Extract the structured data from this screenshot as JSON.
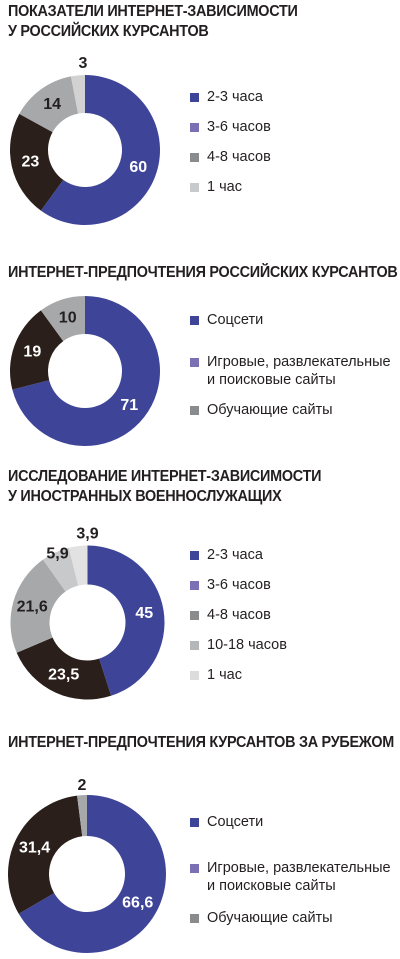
{
  "chart_data": [
    {
      "type": "pie",
      "title": "ПОКАЗАТЕЛИ ИНТЕРНЕТ-ЗАВИСИМОСТИ У РОССИЙСКИХ КУРСАНТОВ",
      "title_lines": [
        "ПОКАЗАТЕЛИ ИНТЕРНЕТ-ЗАВИСИМОСТИ",
        "У РОССИЙСКИХ КУРСАНТОВ"
      ],
      "categories": [
        "2-3 часа",
        "3-6 часов",
        "4-8 часов",
        "1 час"
      ],
      "slices": [
        {
          "label": "2-3 часа",
          "value": 60,
          "text": "60",
          "color": "#3e4598"
        },
        {
          "label": "4-8 часов",
          "value": 23,
          "text": "23",
          "color": "#2a1f1a"
        },
        {
          "label": "1 час",
          "value": 14,
          "text": "14",
          "color": "#a7a8aa"
        },
        {
          "label": "",
          "value": 3,
          "text": "3",
          "color": "#d2d2d3"
        }
      ],
      "legend": [
        {
          "label": "2-3 часа",
          "color": "#3e4598"
        },
        {
          "label": "3-6 часов",
          "color": "#7c70b5"
        },
        {
          "label": "4-8 часов",
          "color": "#8a8b8d"
        },
        {
          "label": "1 час",
          "color": "#c8c9ca"
        }
      ]
    },
    {
      "type": "pie",
      "title": "ИНТЕРНЕТ-ПРЕДПОЧТЕНИЯ РОССИЙСКИХ КУРСАНТОВ",
      "title_lines": [
        "ИНТЕРНЕТ-ПРЕДПОЧТЕНИЯ РОССИЙСКИХ КУРСАНТОВ"
      ],
      "categories": [
        "Соцсети",
        "Игровые, развлекательные и поисковые сайты",
        "Обучающие сайты"
      ],
      "slices": [
        {
          "label": "Соцсети",
          "value": 71,
          "text": "71",
          "color": "#3e4598"
        },
        {
          "label": "Игровые, развлекательные и поисковые сайты",
          "value": 19,
          "text": "19",
          "color": "#2a1f1a"
        },
        {
          "label": "Обучающие сайты",
          "value": 10,
          "text": "10",
          "color": "#a7a8aa"
        }
      ],
      "legend": [
        {
          "label": "Соцсети",
          "label_lines": [
            "Соцсети"
          ],
          "color": "#3e4598"
        },
        {
          "label": "Игровые, развлекательные и поисковые сайты",
          "label_lines": [
            "Игровые, развлекательные",
            "и поисковые сайты"
          ],
          "color": "#7c70b5"
        },
        {
          "label": "Обучающие сайты",
          "label_lines": [
            "Обучающие сайты"
          ],
          "color": "#8a8b8d"
        }
      ]
    },
    {
      "type": "pie",
      "title": "ИССЛЕДОВАНИЕ ИНТЕРНЕТ-ЗАВИСИМОСТИ У ИНОСТРАННЫХ ВОЕННОСЛУЖАЩИХ",
      "title_lines": [
        "ИССЛЕДОВАНИЕ ИНТЕРНЕТ-ЗАВИСИМОСТИ",
        "У ИНОСТРАННЫХ ВОЕННОСЛУЖАЩИХ"
      ],
      "categories": [
        "2-3 часа",
        "3-6 часов",
        "4-8 часов",
        "10-18 часов",
        "1 час"
      ],
      "slices": [
        {
          "label": "2-3 часа",
          "value": 45,
          "text": "45",
          "color": "#3e4598"
        },
        {
          "label": "4-8 часов",
          "value": 23.5,
          "text": "23,5",
          "color": "#2a1f1a"
        },
        {
          "label": "10-18 часов",
          "value": 21.6,
          "text": "21,6",
          "color": "#a7a8aa"
        },
        {
          "label": "",
          "value": 5.9,
          "text": "5,9",
          "color": "#c8c9ca"
        },
        {
          "label": "1 час",
          "value": 3.9,
          "text": "3,9",
          "color": "#e2e2e3"
        }
      ],
      "legend": [
        {
          "label": "2-3 часа",
          "color": "#3e4598"
        },
        {
          "label": "3-6 часов",
          "color": "#7c70b5"
        },
        {
          "label": "4-8 часов",
          "color": "#8a8b8d"
        },
        {
          "label": "10-18 часов",
          "color": "#b5b6b8"
        },
        {
          "label": "1 час",
          "color": "#dcdcdd"
        }
      ]
    },
    {
      "type": "pie",
      "title": "ИНТЕРНЕТ-ПРЕДПОЧТЕНИЯ КУРСАНТОВ ЗА РУБЕЖОМ",
      "title_lines": [
        "ИНТЕРНЕТ-ПРЕДПОЧТЕНИЯ КУРСАНТОВ ЗА РУБЕЖОМ"
      ],
      "categories": [
        "Соцсети",
        "Игровые, развлекательные и поисковые сайты",
        "Обучающие сайты"
      ],
      "slices": [
        {
          "label": "Соцсети",
          "value": 66.6,
          "text": "66,6",
          "color": "#3e4598"
        },
        {
          "label": "Игровые, развлекательные и поисковые сайты",
          "value": 31.4,
          "text": "31,4",
          "color": "#2a1f1a"
        },
        {
          "label": "Обучающие сайты",
          "value": 2,
          "text": "2",
          "color": "#a7a8aa"
        }
      ],
      "legend": [
        {
          "label": "Соцсети",
          "label_lines": [
            "Соцсети"
          ],
          "color": "#3e4598"
        },
        {
          "label": "Игровые, развлекательные и поисковые сайты",
          "label_lines": [
            "Игровые, развлекательные",
            "и поисковые сайты"
          ],
          "color": "#7c70b5"
        },
        {
          "label": "Обучающие сайты",
          "label_lines": [
            "Обучающие сайты"
          ],
          "color": "#8a8b8d"
        }
      ]
    }
  ]
}
